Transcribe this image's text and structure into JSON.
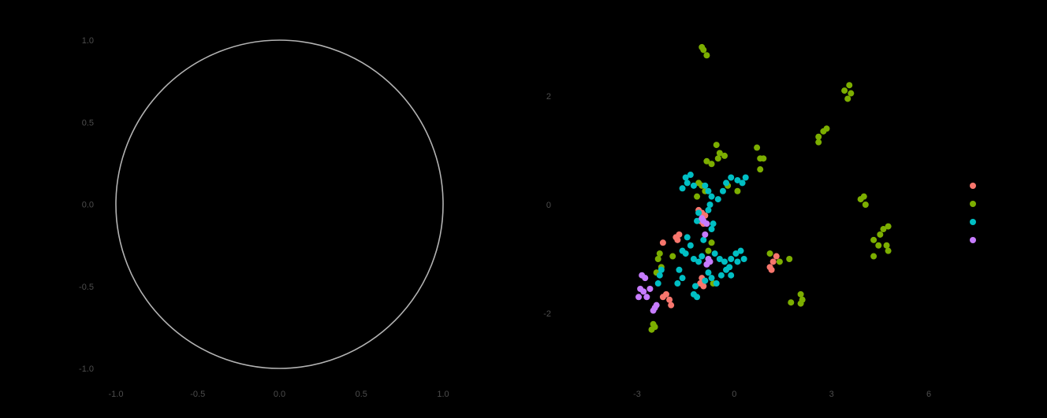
{
  "chart_data": [
    {
      "type": "line",
      "title": "",
      "xlabel": "",
      "ylabel": "",
      "xlim": [
        -1.0,
        1.0
      ],
      "ylim": [
        -1.0,
        1.0
      ],
      "x_ticks": [
        "-1.0",
        "-0.5",
        "0.0",
        "0.5",
        "1.0"
      ],
      "y_ticks": [
        "-1.0",
        "-0.5",
        "0.0",
        "0.5",
        "1.0"
      ],
      "series": [
        {
          "shape": "unit-circle",
          "center": [
            0,
            0
          ],
          "radius": 1.0,
          "color": "#b3b3b3"
        }
      ],
      "grid": false,
      "legend": "none"
    },
    {
      "type": "scatter",
      "title": "",
      "xlabel": "",
      "ylabel": "",
      "xlim": [
        -3.3,
        7.2
      ],
      "ylim": [
        -3.2,
        3.0
      ],
      "x_ticks": [
        "-3",
        "0",
        "3",
        "6"
      ],
      "y_ticks": [
        "2",
        "0",
        "-2"
      ],
      "grid": false,
      "legend": "right",
      "series": [
        {
          "color": "#F8766D",
          "points": [
            [
              -1.1,
              -0.1
            ],
            [
              -1.0,
              -0.15
            ],
            [
              -0.9,
              -0.2
            ],
            [
              -1.05,
              -0.3
            ],
            [
              -0.95,
              -0.35
            ],
            [
              -1.8,
              -0.6
            ],
            [
              -1.7,
              -0.55
            ],
            [
              -1.75,
              -0.65
            ],
            [
              -2.2,
              -0.7
            ],
            [
              -2.1,
              -1.65
            ],
            [
              -2.0,
              -1.75
            ],
            [
              -1.95,
              -1.85
            ],
            [
              -2.2,
              -1.7
            ],
            [
              -1.0,
              -1.35
            ],
            [
              -1.05,
              -1.45
            ],
            [
              -0.95,
              -1.5
            ],
            [
              1.1,
              -1.15
            ],
            [
              1.2,
              -1.05
            ],
            [
              1.3,
              -0.95
            ],
            [
              1.15,
              -1.2
            ]
          ]
        },
        {
          "color": "#7CAE00",
          "points": [
            [
              -1.0,
              2.9
            ],
            [
              -0.85,
              2.75
            ],
            [
              -0.95,
              2.85
            ],
            [
              3.4,
              2.1
            ],
            [
              3.55,
              2.2
            ],
            [
              3.5,
              1.95
            ],
            [
              3.6,
              2.05
            ],
            [
              2.6,
              1.25
            ],
            [
              2.75,
              1.35
            ],
            [
              2.85,
              1.4
            ],
            [
              2.6,
              1.15
            ],
            [
              -0.55,
              1.1
            ],
            [
              -0.45,
              0.95
            ],
            [
              -0.3,
              0.9
            ],
            [
              -0.5,
              0.85
            ],
            [
              -0.85,
              0.8
            ],
            [
              -0.7,
              0.75
            ],
            [
              0.7,
              1.05
            ],
            [
              0.8,
              0.85
            ],
            [
              0.9,
              0.85
            ],
            [
              0.8,
              0.65
            ],
            [
              -1.1,
              0.4
            ],
            [
              -1.0,
              0.35
            ],
            [
              -0.9,
              0.25
            ],
            [
              -1.15,
              0.15
            ],
            [
              -0.2,
              0.35
            ],
            [
              0.1,
              0.25
            ],
            [
              3.9,
              0.1
            ],
            [
              4.0,
              0.15
            ],
            [
              4.05,
              0.0
            ],
            [
              4.6,
              -0.45
            ],
            [
              4.75,
              -0.4
            ],
            [
              4.5,
              -0.55
            ],
            [
              4.3,
              -0.65
            ],
            [
              4.45,
              -0.75
            ],
            [
              4.7,
              -0.75
            ],
            [
              4.75,
              -0.85
            ],
            [
              4.3,
              -0.95
            ],
            [
              1.1,
              -0.9
            ],
            [
              1.4,
              -1.05
            ],
            [
              1.7,
              -1.0
            ],
            [
              2.05,
              -1.65
            ],
            [
              2.1,
              -1.75
            ],
            [
              1.75,
              -1.8
            ],
            [
              2.05,
              -1.82
            ],
            [
              -2.3,
              -0.9
            ],
            [
              -2.35,
              -1.0
            ],
            [
              -2.25,
              -1.15
            ],
            [
              -2.4,
              -1.25
            ],
            [
              -1.9,
              -0.95
            ],
            [
              -2.5,
              -2.2
            ],
            [
              -2.55,
              -2.3
            ],
            [
              -2.45,
              -2.25
            ],
            [
              -0.7,
              -0.7
            ],
            [
              -0.8,
              -0.85
            ],
            [
              -0.65,
              -1.45
            ]
          ]
        },
        {
          "color": "#00BFC4",
          "points": [
            [
              -1.5,
              0.5
            ],
            [
              -1.35,
              0.55
            ],
            [
              -1.45,
              0.4
            ],
            [
              -1.25,
              0.35
            ],
            [
              -1.6,
              0.3
            ],
            [
              -0.9,
              0.35
            ],
            [
              -0.8,
              0.25
            ],
            [
              -0.7,
              0.15
            ],
            [
              -0.5,
              0.1
            ],
            [
              -0.35,
              0.25
            ],
            [
              -0.25,
              0.4
            ],
            [
              -0.1,
              0.5
            ],
            [
              0.1,
              0.45
            ],
            [
              0.25,
              0.4
            ],
            [
              0.35,
              0.5
            ],
            [
              -0.75,
              0.0
            ],
            [
              -0.8,
              -0.1
            ],
            [
              -0.65,
              -0.35
            ],
            [
              -0.7,
              -0.45
            ],
            [
              -1.1,
              -0.15
            ],
            [
              -1.15,
              -0.3
            ],
            [
              -1.45,
              -0.6
            ],
            [
              -1.35,
              -0.75
            ],
            [
              -1.5,
              -0.9
            ],
            [
              -1.6,
              -0.85
            ],
            [
              -1.25,
              -1.0
            ],
            [
              -1.1,
              -1.05
            ],
            [
              -1.0,
              -0.95
            ],
            [
              -0.95,
              -0.65
            ],
            [
              -0.6,
              -0.9
            ],
            [
              -0.45,
              -1.0
            ],
            [
              -0.3,
              -1.05
            ],
            [
              -0.15,
              -1.15
            ],
            [
              -0.1,
              -1.3
            ],
            [
              -0.25,
              -1.2
            ],
            [
              -0.4,
              -1.3
            ],
            [
              -0.55,
              -1.45
            ],
            [
              -0.8,
              -1.25
            ],
            [
              -0.7,
              -1.35
            ],
            [
              -0.9,
              -1.4
            ],
            [
              -1.7,
              -1.2
            ],
            [
              -1.6,
              -1.35
            ],
            [
              -1.75,
              -1.45
            ],
            [
              -2.3,
              -1.3
            ],
            [
              -2.35,
              -1.45
            ],
            [
              -2.25,
              -1.2
            ],
            [
              -1.2,
              -1.5
            ],
            [
              -1.25,
              -1.65
            ],
            [
              -1.15,
              -1.7
            ],
            [
              -0.1,
              -1.0
            ],
            [
              0.05,
              -0.9
            ],
            [
              0.1,
              -1.05
            ],
            [
              0.2,
              -0.85
            ],
            [
              0.3,
              -1.0
            ]
          ]
        },
        {
          "color": "#C77CFF",
          "points": [
            [
              -1.0,
              -0.25
            ],
            [
              -0.95,
              -0.3
            ],
            [
              -0.85,
              -0.35
            ],
            [
              -0.9,
              -0.55
            ],
            [
              -0.8,
              -1.0
            ],
            [
              -0.75,
              -1.05
            ],
            [
              -0.85,
              -1.1
            ],
            [
              -2.85,
              -1.3
            ],
            [
              -2.75,
              -1.35
            ],
            [
              -2.9,
              -1.55
            ],
            [
              -2.8,
              -1.6
            ],
            [
              -2.7,
              -1.7
            ],
            [
              -2.95,
              -1.7
            ],
            [
              -2.6,
              -1.55
            ],
            [
              -2.4,
              -1.85
            ],
            [
              -2.45,
              -1.9
            ],
            [
              -2.5,
              -1.95
            ]
          ]
        }
      ]
    }
  ]
}
